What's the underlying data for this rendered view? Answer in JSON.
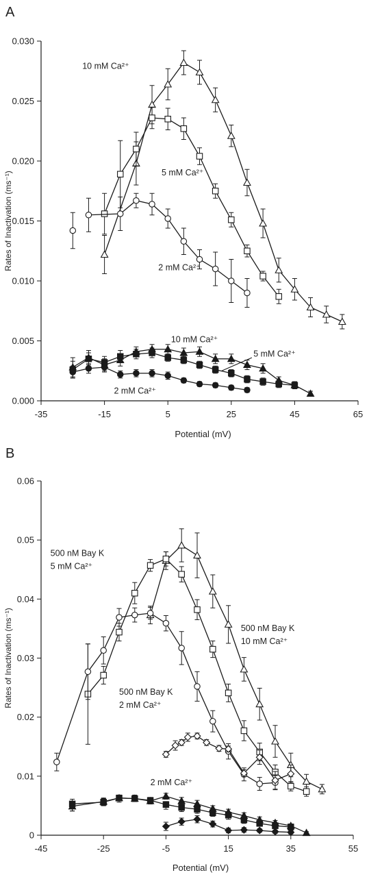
{
  "chart_data": [
    {
      "panel_label": "A",
      "type": "line",
      "xlabel": "Potential (mV)",
      "ylabel": "Rates of Inactivation (ms⁻¹)",
      "xlim": [
        -35,
        65
      ],
      "ylim": [
        0,
        0.03
      ],
      "xticks": [
        -35,
        -15,
        5,
        25,
        45,
        65
      ],
      "xtick_labels": [
        "-35",
        "-15",
        "5",
        "25",
        "45",
        "65"
      ],
      "yticks": [
        0,
        0.005,
        0.01,
        0.015,
        0.02,
        0.025,
        0.03
      ],
      "ytick_labels": [
        "0.000",
        "0.005",
        "0.010",
        "0.015",
        "0.020",
        "0.025",
        "0.030"
      ],
      "annotations": [
        {
          "text": "10 mM Ca²⁺",
          "x": -22,
          "y": 0.0277
        },
        {
          "text": "5 mM Ca²⁺",
          "x": 3,
          "y": 0.0188
        },
        {
          "text": "2 mM Ca²⁺",
          "x": 2,
          "y": 0.0109
        },
        {
          "text": "10 mM Ca²⁺",
          "x": 6,
          "y": 0.0049
        },
        {
          "text": "5 mM Ca²⁺",
          "x": 32,
          "y": 0.0037
        },
        {
          "text": "2 mM Ca²⁺",
          "x": -12,
          "y": 0.0006
        }
      ],
      "series": [
        {
          "marker": "triangle-open",
          "x": [
            -15,
            -5,
            0,
            5,
            10,
            15,
            20,
            25,
            30,
            35,
            40,
            45,
            50,
            55,
            60
          ],
          "y": [
            0.0122,
            0.0198,
            0.0247,
            0.0264,
            0.0282,
            0.0274,
            0.0251,
            0.0221,
            0.0182,
            0.0148,
            0.0109,
            0.0093,
            0.0078,
            0.0072,
            0.0066
          ],
          "err": [
            0.0016,
            0.0018,
            0.0016,
            0.0013,
            0.001,
            0.001,
            0.001,
            0.0009,
            0.0011,
            0.0012,
            0.001,
            0.0009,
            0.0008,
            0.0007,
            0.0006
          ]
        },
        {
          "marker": "square-open",
          "x": [
            -15,
            -10,
            -5,
            0,
            5,
            10,
            15,
            20,
            25,
            30,
            35,
            40
          ],
          "y": [
            0.0156,
            0.0189,
            0.021,
            0.0236,
            0.0235,
            0.0227,
            0.0204,
            0.0175,
            0.0151,
            0.0125,
            0.0104,
            0.0087
          ],
          "err": [
            0.0017,
            0.0028,
            0.0014,
            0.0009,
            0.0009,
            0.0009,
            0.0007,
            0.0006,
            0.0006,
            0.0005,
            0.0004,
            0.0006
          ]
        },
        {
          "marker": "circle-open",
          "x": [
            -25,
            -20,
            -10,
            -5,
            0,
            5,
            10,
            15,
            20,
            25,
            30
          ],
          "y": [
            0.0142,
            0.0155,
            0.0156,
            0.0167,
            0.0164,
            0.0152,
            0.0133,
            0.0118,
            0.011,
            0.01,
            0.009
          ],
          "err": [
            0.0015,
            0.0014,
            0.0014,
            0.0006,
            0.0009,
            0.0008,
            0.0011,
            0.0008,
            0.0014,
            0.0018,
            0.0012
          ],
          "start_index": 1
        },
        {
          "marker": "triangle-filled",
          "x": [
            -25,
            -20,
            -15,
            -10,
            -5,
            0,
            5,
            10,
            15,
            20,
            25,
            30,
            35,
            40,
            45,
            50
          ],
          "y": [
            0.0028,
            0.0036,
            0.003,
            0.0034,
            0.0041,
            0.0043,
            0.0043,
            0.004,
            0.0041,
            0.0035,
            0.0035,
            0.003,
            0.0027,
            0.0017,
            0.0013,
            0.0006
          ],
          "err": [
            0.0008,
            0.0006,
            0.0005,
            0.0005,
            0.0004,
            0.0004,
            0.0004,
            0.0004,
            0.0004,
            0.0004,
            0.0004,
            0.0004,
            0.0004,
            0.0003,
            0.0003,
            0.0002
          ]
        },
        {
          "marker": "square-filled",
          "x": [
            -25,
            -20,
            -15,
            -10,
            -5,
            0,
            5,
            10,
            15,
            20,
            25,
            30,
            35,
            40,
            45
          ],
          "y": [
            0.0026,
            0.0035,
            0.0032,
            0.0037,
            0.0039,
            0.004,
            0.0036,
            0.0034,
            0.003,
            0.0026,
            0.0023,
            0.0018,
            0.0016,
            0.0014,
            0.0013
          ],
          "err": [
            0.0007,
            0.0005,
            0.0005,
            0.0005,
            0.0004,
            0.0004,
            0.0003,
            0.0003,
            0.0003,
            0.0003,
            0.0003,
            0.0003,
            0.0003,
            0.0003,
            0.0003
          ]
        },
        {
          "marker": "circle-filled",
          "x": [
            -25,
            -20,
            -15,
            -10,
            -5,
            0,
            5,
            10,
            15,
            20,
            25,
            30
          ],
          "y": [
            0.0024,
            0.0027,
            0.0028,
            0.0022,
            0.0023,
            0.0023,
            0.0021,
            0.0017,
            0.0014,
            0.0013,
            0.0011,
            0.0009
          ],
          "err": [
            0.0005,
            0.0004,
            0.0004,
            0.0003,
            0.0003,
            0.0003,
            0.0003,
            0.0002,
            0.0002,
            0.0002,
            0.0002,
            0.0002
          ]
        }
      ]
    },
    {
      "panel_label": "B",
      "type": "line",
      "xlabel": "Potential (mV)",
      "ylabel": "Rates of Inactivation (ms⁻¹)",
      "xlim": [
        -45,
        55
      ],
      "ylim": [
        0,
        0.06
      ],
      "xticks": [
        -45,
        -25,
        -5,
        15,
        35,
        55
      ],
      "xtick_labels": [
        "-45",
        "-25",
        "-5",
        "15",
        "35",
        "55"
      ],
      "yticks": [
        0,
        0.01,
        0.02,
        0.03,
        0.04,
        0.05,
        0.06
      ],
      "ytick_labels": [
        "0",
        "0.01",
        "0.02",
        "0.03",
        "0.04",
        "0.05",
        "0.06"
      ],
      "annotations": [
        {
          "text": "500 nM Bay K",
          "x": -42,
          "y": 0.0473
        },
        {
          "text": "5 mM Ca²⁺",
          "x": -42,
          "y": 0.0451
        },
        {
          "text": "500 nM Bay K",
          "x": 19,
          "y": 0.0346
        },
        {
          "text": "10 mM Ca²⁺",
          "x": 19,
          "y": 0.0324
        },
        {
          "text": "500 nM Bay K",
          "x": -20,
          "y": 0.0238
        },
        {
          "text": "2 mM Ca²⁺",
          "x": -20,
          "y": 0.0216
        },
        {
          "text": "2 mM Ca²⁺",
          "x": -10,
          "y": 0.0085
        }
      ],
      "series": [
        {
          "marker": "triangle-open",
          "x": [
            -10,
            -5,
            0,
            5,
            10,
            15,
            20,
            25,
            30,
            35,
            40,
            45
          ],
          "y": [
            0.0373,
            0.0465,
            0.0491,
            0.0474,
            0.0413,
            0.0357,
            0.0281,
            0.0222,
            0.0159,
            0.0119,
            0.0091,
            0.0078
          ],
          "err": [
            0.0015,
            0.0015,
            0.0028,
            0.0038,
            0.0028,
            0.0032,
            0.002,
            0.0027,
            0.0027,
            0.002,
            0.0012,
            0.0008
          ]
        },
        {
          "marker": "square-open",
          "x": [
            -30,
            -25,
            -20,
            -15,
            -10,
            -5,
            0,
            5,
            10,
            15,
            20,
            25,
            30,
            35,
            40
          ],
          "y": [
            0.0239,
            0.0271,
            0.0344,
            0.041,
            0.0457,
            0.0468,
            0.0442,
            0.0382,
            0.0315,
            0.0241,
            0.0177,
            0.0141,
            0.0107,
            0.0083,
            0.0074
          ],
          "err": [
            0.0085,
            0.0015,
            0.0015,
            0.0018,
            0.001,
            0.0012,
            0.0013,
            0.0017,
            0.0014,
            0.0015,
            0.0017,
            0.0015,
            0.0012,
            0.0008,
            0.0008
          ]
        },
        {
          "marker": "circle-open",
          "x": [
            -40,
            -30,
            -25,
            -20,
            -15,
            -10,
            -5,
            0,
            5,
            10,
            15,
            20,
            25,
            30
          ],
          "y": [
            0.0124,
            0.0277,
            0.0313,
            0.0369,
            0.0373,
            0.0376,
            0.0359,
            0.0317,
            0.0252,
            0.0193,
            0.0142,
            0.0103,
            0.0087,
            0.0089
          ],
          "err": [
            0.0015,
            0.0047,
            0.0023,
            0.0015,
            0.0012,
            0.001,
            0.0013,
            0.0028,
            0.0025,
            0.0018,
            0.0013,
            0.0011,
            0.0011,
            0.0012
          ]
        },
        {
          "marker": "diamond-open",
          "x": [
            -5,
            -2,
            0,
            2,
            5,
            8,
            12,
            15,
            20,
            25,
            30,
            35
          ],
          "y": [
            0.0137,
            0.0152,
            0.0157,
            0.0166,
            0.0168,
            0.0157,
            0.0147,
            0.0146,
            0.0105,
            0.0132,
            0.0093,
            0.0104
          ],
          "err": [
            0.0005,
            0.0008,
            0.0005,
            0.0007,
            0.0005,
            0.0005,
            0.0005,
            0.0005,
            0.0006,
            0.0012,
            0.0015,
            0.0015
          ]
        },
        {
          "marker": "triangle-filled",
          "x": [
            -35,
            -25,
            -20,
            -15,
            -10,
            -5,
            0,
            5,
            10,
            15,
            20,
            25,
            30,
            35,
            40
          ],
          "y": [
            0.0049,
            0.0057,
            0.0063,
            0.0062,
            0.0058,
            0.0066,
            0.0058,
            0.0053,
            0.0045,
            0.0039,
            0.0033,
            0.0026,
            0.0021,
            0.0016,
            0.0004
          ],
          "err": [
            0.0008,
            0.0006,
            0.0005,
            0.0005,
            0.0005,
            0.0005,
            0.0006,
            0.0006,
            0.0005,
            0.0005,
            0.0005,
            0.0005,
            0.0004,
            0.0003,
            0.0002
          ]
        },
        {
          "marker": "square-filled",
          "x": [
            -35,
            -25,
            -20,
            -15,
            -10,
            -5,
            0,
            5,
            10,
            15,
            20,
            25,
            30,
            35
          ],
          "y": [
            0.0053,
            0.0056,
            0.0063,
            0.0062,
            0.0059,
            0.0052,
            0.0047,
            0.0044,
            0.0038,
            0.0034,
            0.0026,
            0.002,
            0.0016,
            0.0014
          ],
          "err": [
            0.0008,
            0.0006,
            0.0005,
            0.0005,
            0.0005,
            0.0005,
            0.0005,
            0.0005,
            0.0004,
            0.0004,
            0.0004,
            0.0004,
            0.0003,
            0.0003
          ]
        },
        {
          "marker": "circle-filled",
          "x": [
            -35,
            -25,
            -20,
            -15,
            -10,
            -5,
            0,
            5,
            10,
            15,
            20,
            25,
            30,
            35
          ],
          "y": [
            0.0049,
            0.0056,
            0.0061,
            0.0063,
            0.0058,
            0.0049,
            0.0045,
            0.0041,
            0.0036,
            0.0031,
            0.0024,
            0.0019,
            0.0015,
            0.0012
          ],
          "err": [
            0.0008,
            0.0006,
            0.0005,
            0.0005,
            0.0005,
            0.0005,
            0.0005,
            0.0004,
            0.0004,
            0.0004,
            0.0004,
            0.0004,
            0.0003,
            0.0003
          ],
          "draw": false
        },
        {
          "marker": "diamond-filled",
          "x": [
            -5,
            0,
            5,
            10,
            15,
            20,
            25,
            30,
            35
          ],
          "y": [
            0.0015,
            0.0023,
            0.0027,
            0.0019,
            0.0008,
            0.0009,
            0.0008,
            0.0006,
            0.0005
          ],
          "err": [
            0.0007,
            0.0006,
            0.0006,
            0.0005,
            0.0004,
            0.0004,
            0.0003,
            0.0003,
            0.0003
          ]
        }
      ]
    }
  ]
}
